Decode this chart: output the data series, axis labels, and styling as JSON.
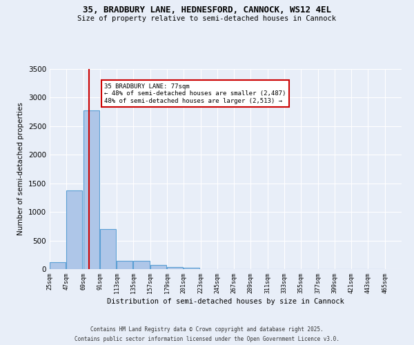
{
  "title1": "35, BRADBURY LANE, HEDNESFORD, CANNOCK, WS12 4EL",
  "title2": "Size of property relative to semi-detached houses in Cannock",
  "xlabel": "Distribution of semi-detached houses by size in Cannock",
  "ylabel": "Number of semi-detached properties",
  "bin_edges": [
    25,
    47,
    69,
    91,
    113,
    135,
    157,
    179,
    201,
    223,
    245,
    267,
    289,
    311,
    333,
    355,
    377,
    399,
    421,
    443,
    465
  ],
  "bar_heights": [
    120,
    1370,
    2780,
    700,
    150,
    140,
    70,
    40,
    20,
    5,
    2,
    1,
    1,
    0,
    0,
    0,
    0,
    0,
    0,
    0
  ],
  "bar_color": "#aec6e8",
  "bar_edge_color": "#5a9fd4",
  "property_size": 77,
  "property_label": "35 BRADBURY LANE: 77sqm",
  "pct_smaller": 48,
  "n_smaller": 2487,
  "pct_larger": 48,
  "n_larger": 2513,
  "annotation_box_color": "#ffffff",
  "annotation_box_edge": "#cc0000",
  "vline_color": "#cc0000",
  "ylim": [
    0,
    3500
  ],
  "background_color": "#e8eef8",
  "grid_color": "#ffffff",
  "footer1": "Contains HM Land Registry data © Crown copyright and database right 2025.",
  "footer2": "Contains public sector information licensed under the Open Government Licence v3.0."
}
